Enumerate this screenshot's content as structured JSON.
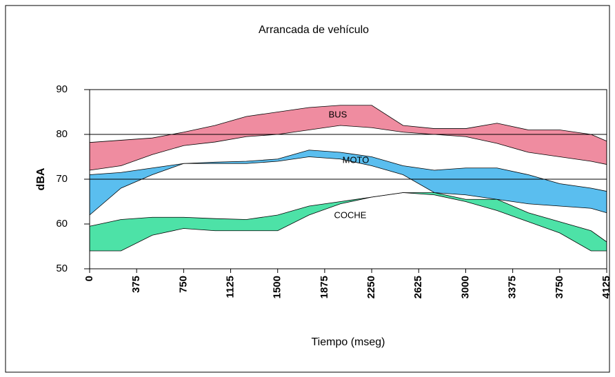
{
  "chart_data": {
    "type": "range-area",
    "title": "Arrancada de vehículo",
    "x_label": "Tiempo (mseg)",
    "y_label": "dBA",
    "x": [
      0,
      250,
      500,
      750,
      1000,
      1250,
      1500,
      1750,
      2000,
      2250,
      2500,
      2750,
      3000,
      3250,
      3500,
      3750,
      4000,
      4125
    ],
    "series": [
      {
        "name": "BUS",
        "color": "#ef8ca0",
        "upper": [
          78.2,
          78.7,
          79.2,
          80.5,
          82,
          84,
          85,
          86,
          86.5,
          86.5,
          82,
          81.3,
          81.3,
          82.5,
          81,
          81,
          80,
          78.5
        ],
        "lower": [
          72,
          73,
          75.5,
          77.5,
          78.3,
          79.5,
          80,
          81,
          82,
          81.5,
          80.5,
          80,
          79.5,
          78,
          76,
          75,
          74,
          73.3
        ]
      },
      {
        "name": "MOTO",
        "color": "#4cb8ee",
        "upper": [
          71,
          71.5,
          72.5,
          73.5,
          73.8,
          74,
          74.5,
          76.5,
          76,
          75,
          73,
          72,
          72.5,
          72.5,
          71,
          69,
          68,
          67.3
        ],
        "lower": [
          62,
          68,
          71,
          73.5,
          73.5,
          73.5,
          74,
          75,
          74.5,
          73,
          71,
          67,
          66.5,
          65.5,
          64.5,
          64,
          63.5,
          62.5
        ]
      },
      {
        "name": "COCHE",
        "color": "#3ee0a0",
        "upper": [
          59.5,
          61,
          61.5,
          61.5,
          61.2,
          61,
          62,
          64,
          65,
          66,
          67,
          67,
          65.5,
          65.5,
          62.5,
          60.5,
          58.5,
          56
        ],
        "lower": [
          54,
          54,
          57.5,
          59,
          58.5,
          58.5,
          58.5,
          62,
          64.5,
          66,
          67,
          66.5,
          65,
          63,
          60.5,
          58,
          54,
          54
        ]
      }
    ],
    "xlim": [
      0,
      4125
    ],
    "xticks": [
      0,
      375,
      750,
      1125,
      1500,
      1875,
      2250,
      2625,
      3000,
      3375,
      3750,
      4125
    ],
    "ylim": [
      50,
      90
    ],
    "yticks": [
      50,
      60,
      70,
      80,
      90
    ],
    "grid": true
  }
}
